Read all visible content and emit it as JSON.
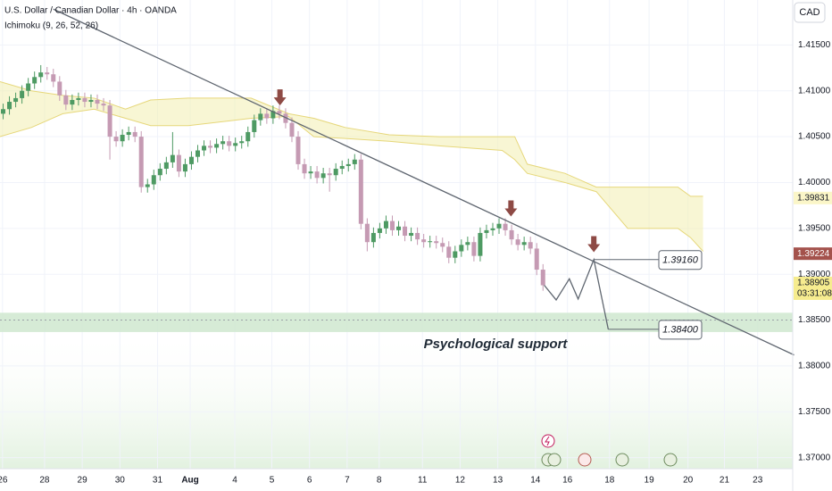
{
  "chart_data": {
    "type": "candlestick",
    "title": "U.S. Dollar / Canadian Dollar · 4h · OANDA",
    "indicator": "Ichimoku (9, 26, 52, 26)",
    "currency": "CAD",
    "colors": {
      "up": "#4e9a63",
      "down": "#c59ab3",
      "cloud": "#f3efb0",
      "trendline": "#5f6670",
      "projection": "#5f6670",
      "support": "#cfe8cf",
      "arrow": "#8e4a45"
    },
    "xlim": [
      0,
      126
    ],
    "ylim": [
      1.3688,
      1.4199
    ],
    "yticks": [
      {
        "value": 1.415,
        "label": "1.41500"
      },
      {
        "value": 1.41,
        "label": "1.41000"
      },
      {
        "value": 1.405,
        "label": "1.40500"
      },
      {
        "value": 1.4,
        "label": "1.40000"
      },
      {
        "value": 1.395,
        "label": "1.39500"
      },
      {
        "value": 1.39,
        "label": "1.39000"
      },
      {
        "value": 1.385,
        "label": "1.38500"
      },
      {
        "value": 1.38,
        "label": "1.38000"
      },
      {
        "value": 1.375,
        "label": "1.37500"
      },
      {
        "value": 1.37,
        "label": "1.37000"
      }
    ],
    "xticks": [
      {
        "value": 0.4,
        "label": "26"
      },
      {
        "value": 7.1,
        "label": "28"
      },
      {
        "value": 13.1,
        "label": "29"
      },
      {
        "value": 19.1,
        "label": "30"
      },
      {
        "value": 25.1,
        "label": "31"
      },
      {
        "value": 30.3,
        "label": "Aug"
      },
      {
        "value": 37.4,
        "label": "4"
      },
      {
        "value": 43.3,
        "label": "5"
      },
      {
        "value": 49.3,
        "label": "6"
      },
      {
        "value": 55.3,
        "label": "7"
      },
      {
        "value": 60.4,
        "label": "8"
      },
      {
        "value": 67.3,
        "label": "11"
      },
      {
        "value": 73.3,
        "label": "12"
      },
      {
        "value": 79.3,
        "label": "13"
      },
      {
        "value": 85.3,
        "label": "14"
      },
      {
        "value": 90.4,
        "label": "16"
      },
      {
        "value": 97.1,
        "label": "18"
      },
      {
        "value": 103.4,
        "label": "19"
      },
      {
        "value": 109.6,
        "label": "20"
      },
      {
        "value": 115.4,
        "label": "21"
      },
      {
        "value": 120.7,
        "label": "23"
      }
    ],
    "ohlc": [
      [
        1.4075,
        1.4086,
        1.4069,
        1.408
      ],
      [
        1.408,
        1.4094,
        1.4074,
        1.4088
      ],
      [
        1.4088,
        1.4098,
        1.4082,
        1.4092
      ],
      [
        1.4092,
        1.4106,
        1.4086,
        1.41
      ],
      [
        1.41,
        1.4114,
        1.4094,
        1.4108
      ],
      [
        1.4108,
        1.4121,
        1.4102,
        1.4115
      ],
      [
        1.4115,
        1.4128,
        1.4109,
        1.412
      ],
      [
        1.412,
        1.4126,
        1.4112,
        1.4118
      ],
      [
        1.4118,
        1.4124,
        1.4104,
        1.411
      ],
      [
        1.411,
        1.4116,
        1.4089,
        1.4095
      ],
      [
        1.4095,
        1.4101,
        1.4079,
        1.4085
      ],
      [
        1.4085,
        1.4096,
        1.4079,
        1.409
      ],
      [
        1.409,
        1.4098,
        1.4084,
        1.4092
      ],
      [
        1.4092,
        1.4098,
        1.4082,
        1.4088
      ],
      [
        1.4088,
        1.4096,
        1.4082,
        1.409
      ],
      [
        1.409,
        1.4096,
        1.408,
        1.4086
      ],
      [
        1.4086,
        1.4092,
        1.4078,
        1.4084
      ],
      [
        1.4084,
        1.409,
        1.4025,
        1.405
      ],
      [
        1.405,
        1.4056,
        1.4039,
        1.4045
      ],
      [
        1.4045,
        1.4058,
        1.4039,
        1.4052
      ],
      [
        1.4052,
        1.4061,
        1.4046,
        1.4055
      ],
      [
        1.4055,
        1.4061,
        1.4044,
        1.405
      ],
      [
        1.405,
        1.4056,
        1.3989,
        1.3995
      ],
      [
        1.3995,
        1.4004,
        1.3989,
        1.3998
      ],
      [
        1.3998,
        1.4014,
        1.3992,
        1.4008
      ],
      [
        1.4008,
        1.4021,
        1.4002,
        1.4015
      ],
      [
        1.4015,
        1.4028,
        1.4009,
        1.4022
      ],
      [
        1.4022,
        1.4055,
        1.4016,
        1.403
      ],
      [
        1.403,
        1.4036,
        1.4006,
        1.4012
      ],
      [
        1.4012,
        1.4026,
        1.4006,
        1.402
      ],
      [
        1.402,
        1.4034,
        1.4014,
        1.4028
      ],
      [
        1.4028,
        1.4041,
        1.4022,
        1.4035
      ],
      [
        1.4035,
        1.4046,
        1.4029,
        1.404
      ],
      [
        1.404,
        1.4046,
        1.4032,
        1.4038
      ],
      [
        1.4038,
        1.4048,
        1.4032,
        1.4042
      ],
      [
        1.4042,
        1.4051,
        1.4036,
        1.4045
      ],
      [
        1.4045,
        1.4051,
        1.4034,
        1.404
      ],
      [
        1.404,
        1.4049,
        1.4034,
        1.4043
      ],
      [
        1.4043,
        1.4051,
        1.4037,
        1.4045
      ],
      [
        1.4045,
        1.4061,
        1.4039,
        1.4055
      ],
      [
        1.4055,
        1.4074,
        1.4049,
        1.4068
      ],
      [
        1.4068,
        1.4081,
        1.4062,
        1.4075
      ],
      [
        1.4075,
        1.4081,
        1.4064,
        1.407
      ],
      [
        1.407,
        1.4084,
        1.4064,
        1.4078
      ],
      [
        1.4078,
        1.4084,
        1.4069,
        1.4075
      ],
      [
        1.4075,
        1.4081,
        1.4059,
        1.4065
      ],
      [
        1.4065,
        1.4071,
        1.4044,
        1.405
      ],
      [
        1.405,
        1.4056,
        1.4014,
        1.402
      ],
      [
        1.402,
        1.4026,
        1.4004,
        1.401
      ],
      [
        1.401,
        1.4018,
        1.4004,
        1.4012
      ],
      [
        1.4012,
        1.4018,
        1.3999,
        1.4005
      ],
      [
        1.4005,
        1.4016,
        1.3999,
        1.401
      ],
      [
        1.401,
        1.4016,
        1.399,
        1.4008
      ],
      [
        1.4008,
        1.4021,
        1.4002,
        1.4015
      ],
      [
        1.4015,
        1.4024,
        1.4009,
        1.4018
      ],
      [
        1.4018,
        1.4026,
        1.4012,
        1.402
      ],
      [
        1.402,
        1.4031,
        1.4014,
        1.4025
      ],
      [
        1.4025,
        1.4031,
        1.3949,
        1.3955
      ],
      [
        1.3955,
        1.3961,
        1.3925,
        1.3935
      ],
      [
        1.3935,
        1.3951,
        1.3929,
        1.3945
      ],
      [
        1.3945,
        1.3956,
        1.3939,
        1.395
      ],
      [
        1.395,
        1.3964,
        1.3944,
        1.3958
      ],
      [
        1.3958,
        1.3964,
        1.3942,
        1.3948
      ],
      [
        1.3948,
        1.3958,
        1.3942,
        1.3952
      ],
      [
        1.3952,
        1.3958,
        1.3936,
        1.3942
      ],
      [
        1.3942,
        1.3951,
        1.3936,
        1.3945
      ],
      [
        1.3945,
        1.3951,
        1.3932,
        1.3938
      ],
      [
        1.3938,
        1.3944,
        1.3929,
        1.3935
      ],
      [
        1.3935,
        1.3942,
        1.3929,
        1.3936
      ],
      [
        1.3936,
        1.3942,
        1.3928,
        1.3934
      ],
      [
        1.3934,
        1.394,
        1.3924,
        1.393
      ],
      [
        1.393,
        1.3936,
        1.3912,
        1.3918
      ],
      [
        1.3918,
        1.3931,
        1.3912,
        1.3925
      ],
      [
        1.3925,
        1.3938,
        1.3919,
        1.3932
      ],
      [
        1.3932,
        1.3941,
        1.3926,
        1.3935
      ],
      [
        1.3935,
        1.3941,
        1.3914,
        1.392
      ],
      [
        1.392,
        1.3951,
        1.3914,
        1.3945
      ],
      [
        1.3945,
        1.3954,
        1.3939,
        1.3948
      ],
      [
        1.3948,
        1.3956,
        1.3942,
        1.395
      ],
      [
        1.395,
        1.3961,
        1.3944,
        1.3955
      ],
      [
        1.3955,
        1.3961,
        1.3942,
        1.3948
      ],
      [
        1.3948,
        1.3954,
        1.3932,
        1.3938
      ],
      [
        1.3938,
        1.3944,
        1.3926,
        1.3932
      ],
      [
        1.3932,
        1.3941,
        1.3926,
        1.3935
      ],
      [
        1.3935,
        1.3941,
        1.3922,
        1.3928
      ],
      [
        1.3928,
        1.3934,
        1.3899,
        1.3905
      ],
      [
        1.3905,
        1.3911,
        1.3882,
        1.3888
      ]
    ],
    "cloud": {
      "x": [
        0,
        5,
        10,
        15,
        20,
        24,
        30,
        40,
        46,
        50,
        55,
        62,
        70,
        80,
        82,
        84,
        90,
        95,
        100,
        108,
        110,
        112
      ],
      "upper": [
        1.411,
        1.41,
        1.4095,
        1.4092,
        1.408,
        1.409,
        1.4092,
        1.4092,
        1.4075,
        1.407,
        1.406,
        1.4052,
        1.405,
        1.405,
        1.405,
        1.402,
        1.401,
        1.3995,
        1.3995,
        1.3995,
        1.3985,
        1.3985
      ],
      "lower": [
        1.405,
        1.406,
        1.4075,
        1.408,
        1.407,
        1.4062,
        1.4062,
        1.407,
        1.4072,
        1.405,
        1.4048,
        1.4045,
        1.404,
        1.4035,
        1.4025,
        1.401,
        1.4,
        1.399,
        1.395,
        1.395,
        1.394,
        1.3925
      ]
    },
    "trendline": {
      "x": [
        8.5,
        126.5
      ],
      "y": [
        1.4189,
        1.3812
      ]
    },
    "projection": {
      "x": [
        86.7,
        88.6,
        90.7,
        92.1,
        94.6,
        96.9
      ],
      "y": [
        1.3888,
        1.3872,
        1.3895,
        1.3873,
        1.3916,
        1.384
      ]
    },
    "support": {
      "band": [
        1.3837,
        1.3858
      ],
      "level": 1.385,
      "label": "Psychological support"
    },
    "callouts": [
      {
        "x": 94.6,
        "value": 1.3916,
        "label": "1.39160"
      },
      {
        "x": 96.9,
        "value": 1.384,
        "label": "1.38400"
      }
    ],
    "arrows": [
      {
        "x": 44.6,
        "y": 1.4084
      },
      {
        "x": 81.4,
        "y": 1.3963
      },
      {
        "x": 94.6,
        "y": 1.3924
      }
    ],
    "price_tags": [
      {
        "value": 1.39831,
        "label": "1.39831",
        "color": "#fbf6c8",
        "text_color": "#131722"
      },
      {
        "value": 1.39224,
        "label": "1.39224",
        "color": "#a4524c",
        "text_color": "#ffffff"
      },
      {
        "value": 1.38905,
        "label": "1.38905",
        "countdown": "03:31:08",
        "color": "#f6ec8f",
        "text_color": "#131722"
      }
    ]
  }
}
